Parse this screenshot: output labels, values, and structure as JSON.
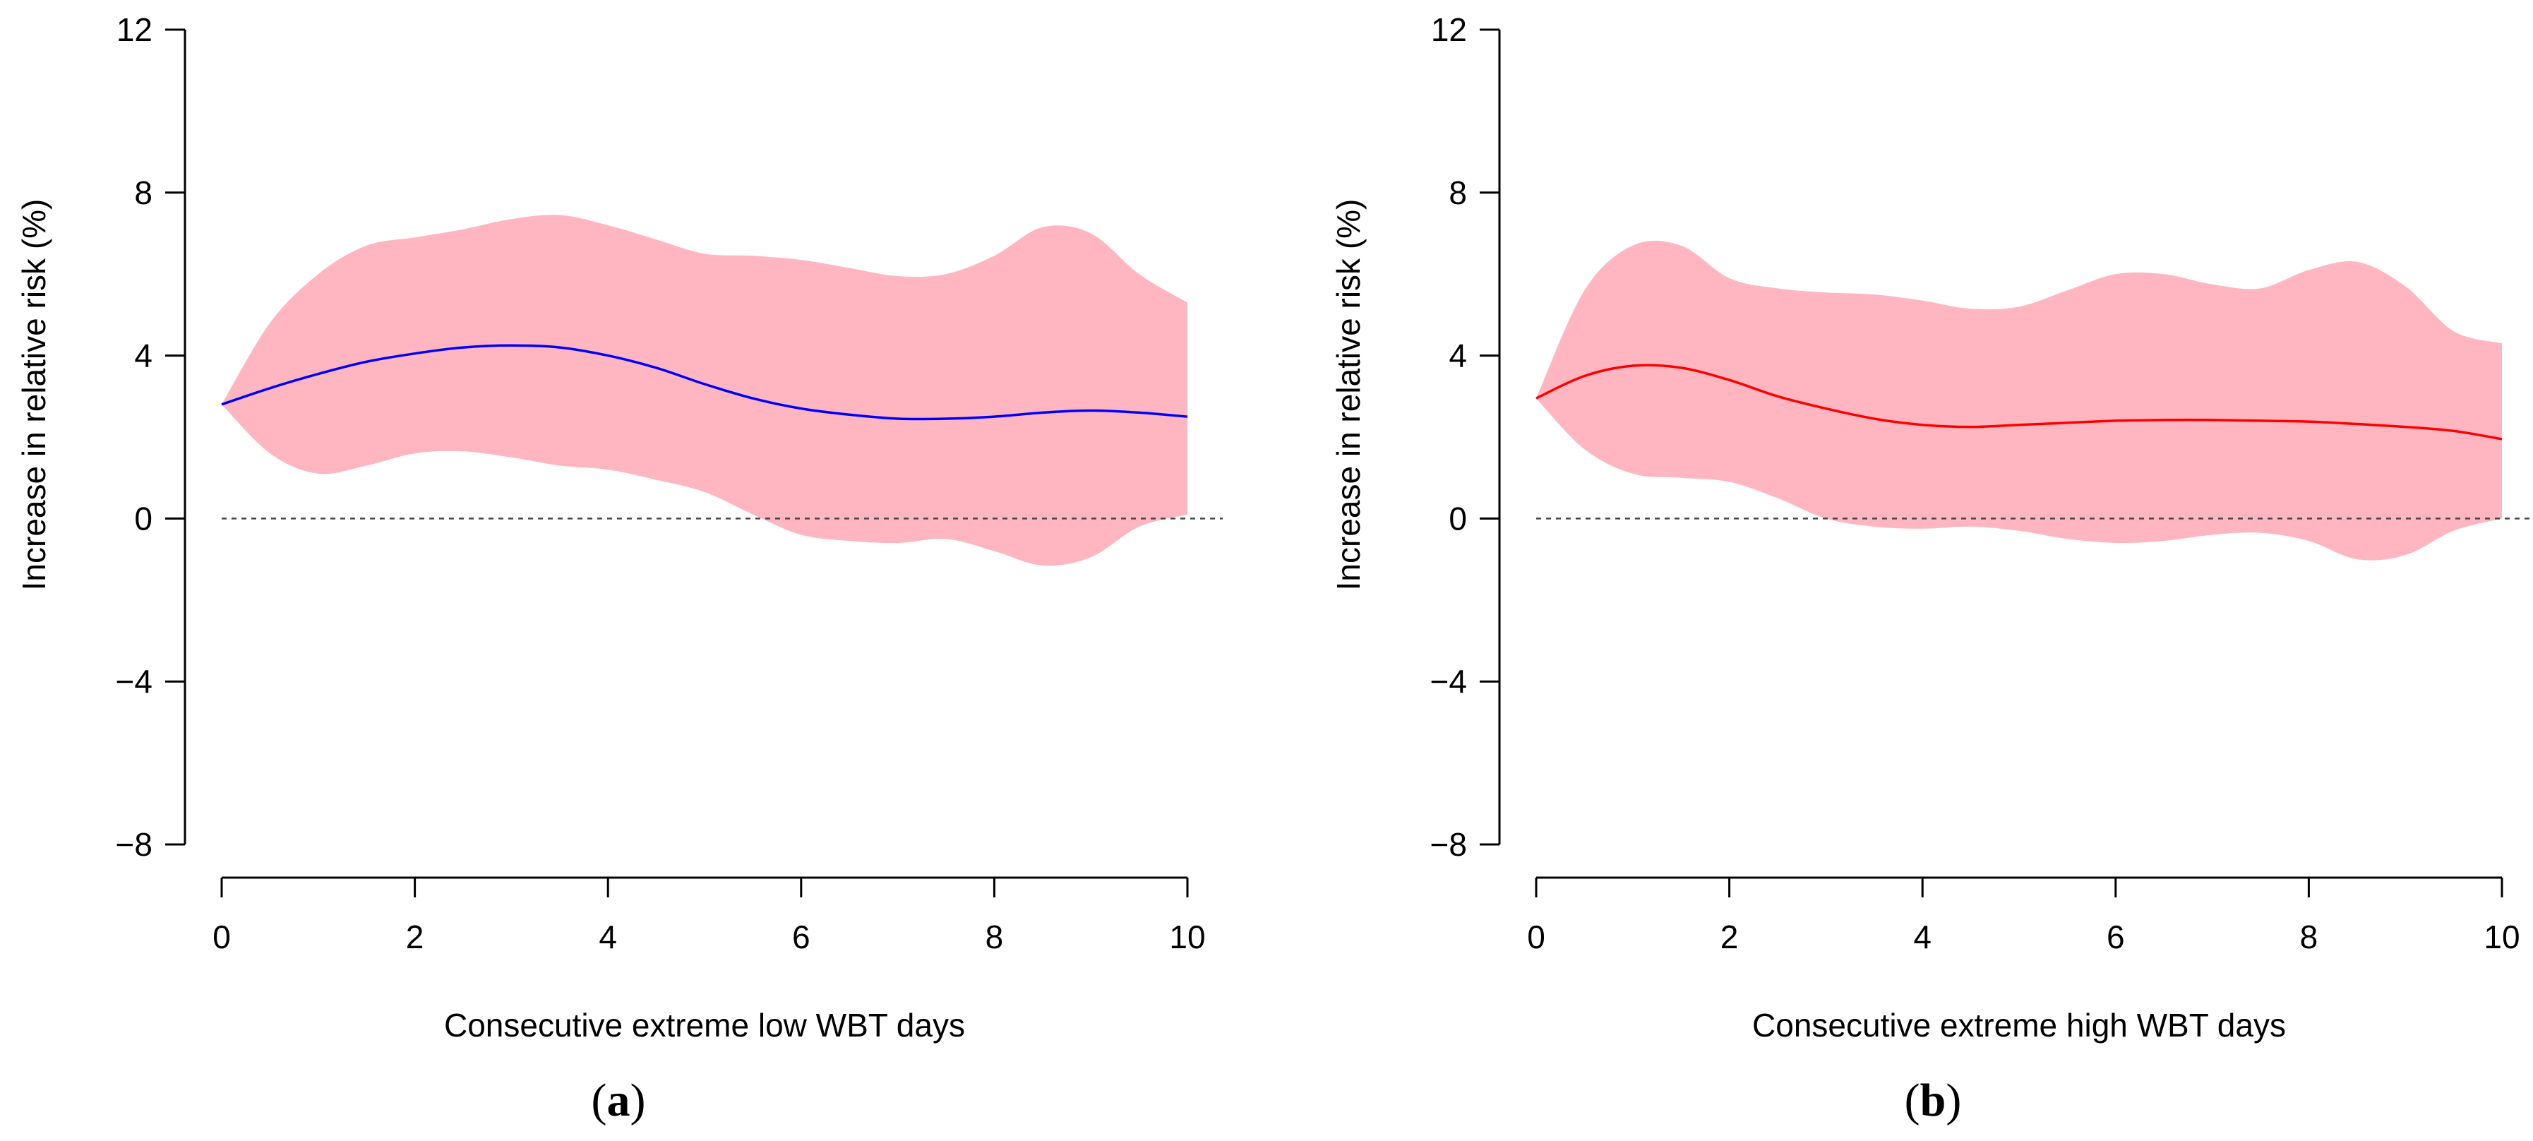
{
  "chart_data": [
    {
      "type": "line",
      "panel_label": "(a)",
      "panel_letter": "a",
      "xlabel": "Consecutive extreme low WBT days",
      "ylabel": "Increase in relative risk (%)",
      "xlim": [
        0,
        10
      ],
      "ylim": [
        -8,
        12
      ],
      "x_ticks": [
        0,
        2,
        4,
        6,
        8,
        10
      ],
      "y_ticks": [
        -8,
        -4,
        0,
        4,
        8,
        12
      ],
      "x_tick_labels": [
        "0",
        "2",
        "4",
        "6",
        "8",
        "10"
      ],
      "y_tick_labels": [
        "−8",
        "−4",
        "0",
        "4",
        "8",
        "12"
      ],
      "reference_line": 0,
      "line_color": "#0000ff",
      "band_color": "#ffb6c1",
      "x": [
        0,
        0.5,
        1,
        1.5,
        2,
        2.5,
        3,
        3.5,
        4,
        4.5,
        5,
        5.5,
        6,
        6.5,
        7,
        7.5,
        8,
        8.5,
        9,
        9.5,
        10
      ],
      "estimate": [
        2.8,
        3.2,
        3.55,
        3.85,
        4.05,
        4.2,
        4.25,
        4.2,
        4.0,
        3.7,
        3.3,
        2.95,
        2.7,
        2.55,
        2.45,
        2.45,
        2.5,
        2.6,
        2.65,
        2.6,
        2.5
      ],
      "upper": [
        2.8,
        4.8,
        6.0,
        6.7,
        6.9,
        7.1,
        7.35,
        7.45,
        7.2,
        6.85,
        6.5,
        6.45,
        6.35,
        6.15,
        5.95,
        6.0,
        6.45,
        7.15,
        7.0,
        6.0,
        5.3
      ],
      "lower": [
        2.8,
        1.6,
        1.1,
        1.3,
        1.6,
        1.65,
        1.5,
        1.3,
        1.2,
        0.95,
        0.65,
        0.1,
        -0.4,
        -0.55,
        -0.6,
        -0.5,
        -0.8,
        -1.15,
        -0.95,
        -0.2,
        0.1
      ]
    },
    {
      "type": "line",
      "panel_label": "(b)",
      "panel_letter": "b",
      "xlabel": "Consecutive extreme high WBT days",
      "ylabel": "Increase in relative risk (%)",
      "xlim": [
        0,
        10
      ],
      "ylim": [
        -8,
        12
      ],
      "x_ticks": [
        0,
        2,
        4,
        6,
        8,
        10
      ],
      "y_ticks": [
        -8,
        -4,
        0,
        4,
        8,
        12
      ],
      "x_tick_labels": [
        "0",
        "2",
        "4",
        "6",
        "8",
        "10"
      ],
      "y_tick_labels": [
        "−8",
        "−4",
        "0",
        "4",
        "8",
        "12"
      ],
      "reference_line": 0,
      "line_color": "#ff0000",
      "band_color": "#ffb6c1",
      "x": [
        0,
        0.5,
        1,
        1.5,
        2,
        2.5,
        3,
        3.5,
        4,
        4.5,
        5,
        5.5,
        6,
        6.5,
        7,
        7.5,
        8,
        8.5,
        9,
        9.5,
        10
      ],
      "estimate": [
        2.95,
        3.5,
        3.75,
        3.7,
        3.4,
        3.0,
        2.7,
        2.45,
        2.3,
        2.25,
        2.3,
        2.35,
        2.4,
        2.42,
        2.42,
        2.4,
        2.38,
        2.32,
        2.25,
        2.15,
        1.95
      ],
      "upper": [
        2.95,
        5.6,
        6.7,
        6.7,
        5.9,
        5.65,
        5.55,
        5.5,
        5.35,
        5.15,
        5.2,
        5.6,
        6.0,
        6.0,
        5.75,
        5.65,
        6.1,
        6.3,
        5.7,
        4.6,
        4.3
      ],
      "lower": [
        2.95,
        1.7,
        1.1,
        1.0,
        0.9,
        0.5,
        0.0,
        -0.2,
        -0.25,
        -0.2,
        -0.3,
        -0.5,
        -0.6,
        -0.55,
        -0.4,
        -0.35,
        -0.55,
        -1.0,
        -0.9,
        -0.3,
        0.0
      ]
    }
  ]
}
